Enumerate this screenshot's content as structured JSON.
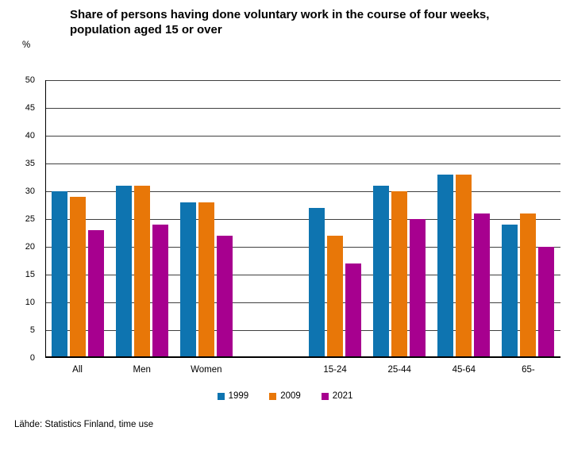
{
  "title": {
    "full": "Share of persons having done voluntary work in the course of four weeks, population aged 15 or over",
    "line1": "Share of persons having done voluntary work in the course of four weeks,",
    "line2": "population aged 15 or over"
  },
  "axis_unit_label": "%",
  "source_text": "Lähde: Statistics Finland, time use",
  "legend_items": [
    "1999",
    "2009",
    "2021"
  ],
  "colors": {
    "series_1999": "#0e74b0",
    "series_2009": "#e87708",
    "series_2021": "#a7008f",
    "gridline": "#404040",
    "axis": "#000000",
    "background": "#ffffff"
  },
  "chart_data": {
    "type": "bar",
    "title": "Share of persons having done voluntary work in the course of four weeks, population aged 15 or over",
    "xlabel": "",
    "ylabel": "%",
    "ylim": [
      0,
      50
    ],
    "yticks": [
      0,
      5,
      10,
      15,
      20,
      25,
      30,
      35,
      40,
      45,
      50
    ],
    "grid": true,
    "legend_position": "bottom-center",
    "categories": [
      "All",
      "Men",
      "Women",
      "15-24",
      "25-44",
      "45-64",
      "65-"
    ],
    "category_groups": [
      [
        "All",
        "Men",
        "Women"
      ],
      [
        "15-24",
        "25-44",
        "45-64",
        "65-"
      ]
    ],
    "series": [
      {
        "name": "1999",
        "color": "#0e74b0",
        "values": [
          30,
          31,
          28,
          27,
          31,
          33,
          24
        ]
      },
      {
        "name": "2009",
        "color": "#e87708",
        "values": [
          29,
          31,
          28,
          22,
          30,
          33,
          26
        ]
      },
      {
        "name": "2021",
        "color": "#a7008f",
        "values": [
          23,
          24,
          22,
          17,
          25,
          26,
          20
        ]
      }
    ]
  }
}
